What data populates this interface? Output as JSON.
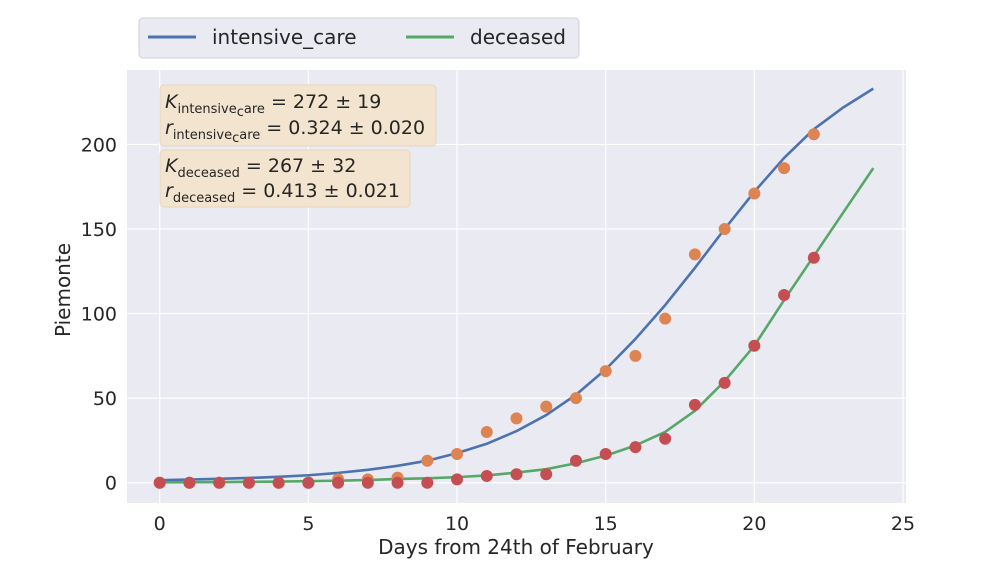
{
  "chart_data": {
    "type": "scatter",
    "xlabel": "Days from 24th of February",
    "ylabel": "Piemonte",
    "xlim": [
      -1.1,
      25.1
    ],
    "ylim": [
      -12,
      244
    ],
    "xticks": [
      0,
      5,
      10,
      15,
      20,
      25
    ],
    "yticks": [
      0,
      50,
      100,
      150,
      200
    ],
    "grid": true,
    "legend_position": "top-left-outside",
    "series": [
      {
        "name": "intensive_care",
        "kind": "fit-line",
        "color": "#4c72b0",
        "K": 272,
        "r": 0.324,
        "x": [
          0,
          1,
          2,
          3,
          4,
          5,
          6,
          7,
          8,
          9,
          10,
          11,
          12,
          13,
          14,
          15,
          16,
          17,
          18,
          19,
          20,
          21,
          22,
          23,
          24
        ],
        "y": [
          1.5,
          1.9,
          2.3,
          2.8,
          3.5,
          4.4,
          5.8,
          7.6,
          10.0,
          13.0,
          17.5,
          23.0,
          30.5,
          40.0,
          52.0,
          67.0,
          85.0,
          105.0,
          127.0,
          150.0,
          172.0,
          192.0,
          209.0,
          222.0,
          233.0
        ]
      },
      {
        "name": "deceased",
        "kind": "fit-line",
        "color": "#55a868",
        "K": 267,
        "r": 0.413,
        "x": [
          0,
          1,
          2,
          3,
          4,
          5,
          6,
          7,
          8,
          9,
          10,
          11,
          12,
          13,
          14,
          15,
          16,
          17,
          18,
          19,
          20,
          21,
          22,
          23,
          24
        ],
        "y": [
          0.2,
          0.3,
          0.4,
          0.5,
          0.7,
          0.9,
          1.2,
          1.6,
          2.2,
          2.6,
          3.3,
          4.3,
          6.0,
          8.0,
          11.5,
          16.0,
          22.0,
          30.0,
          42.5,
          60.0,
          81.0,
          108.0,
          134.0,
          160.0,
          186.0
        ]
      },
      {
        "kind": "points",
        "color": "#dd8452",
        "x": [
          0,
          1,
          2,
          3,
          4,
          5,
          6,
          7,
          8,
          9,
          10,
          11,
          12,
          13,
          14,
          15,
          16,
          17,
          18,
          19,
          20,
          21,
          22
        ],
        "y": [
          0,
          0,
          0,
          0,
          0,
          0,
          2,
          2,
          3,
          13,
          17,
          30,
          38,
          45,
          50,
          66,
          75,
          97,
          135,
          150,
          171,
          186,
          206
        ]
      },
      {
        "kind": "points",
        "color": "#c44e52",
        "x": [
          0,
          1,
          2,
          3,
          4,
          5,
          6,
          7,
          8,
          9,
          10,
          11,
          12,
          13,
          14,
          15,
          16,
          17,
          18,
          19,
          20,
          21,
          22
        ],
        "y": [
          0,
          0,
          0,
          0,
          0,
          0,
          0,
          0,
          0,
          0,
          2,
          4,
          5,
          5,
          13,
          17,
          21,
          26,
          46,
          59,
          81,
          111,
          133
        ]
      }
    ],
    "annotations": [
      {
        "line1_main": "K",
        "line1_sub": "intensive",
        "line1_sub2": "c",
        "line1_sub3": "are",
        "line1_value": " = 272 ± 19",
        "line2_main": "r",
        "line2_sub": "intensive",
        "line2_sub2": "c",
        "line2_sub3": "are",
        "line2_value": " = 0.324 ± 0.020"
      },
      {
        "line1_main": "K",
        "line1_sub": "deceased",
        "line1_value": " = 267 ± 32",
        "line2_main": "r",
        "line2_sub": "deceased",
        "line2_value": " = 0.413 ± 0.021"
      }
    ]
  },
  "colors": {
    "plot_bg": "#eaeaf2",
    "grid": "#ffffff",
    "annotation_bg": "#f2e4cf",
    "legend_bg": "#eaeaf2"
  }
}
